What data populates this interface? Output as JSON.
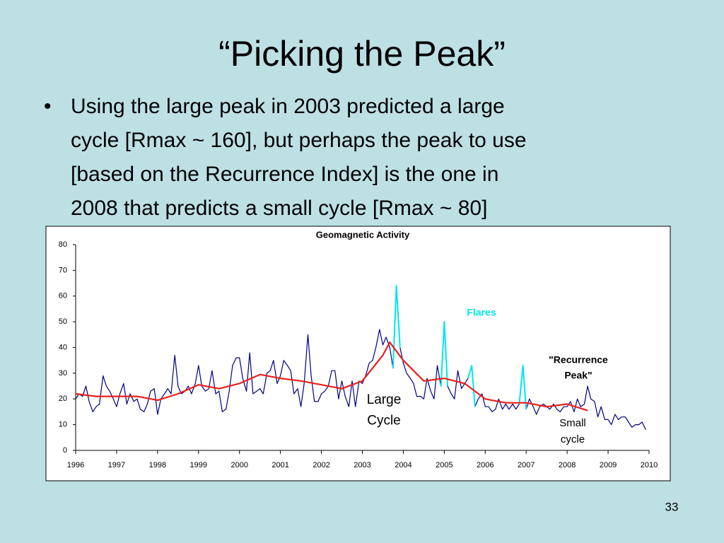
{
  "slide": {
    "title": "“Picking the Peak”",
    "bullet": [
      "Using the large peak in 2003 predicted a large",
      "cycle [Rmax ~ 160], but perhaps the peak to use",
      "[based on the Recurrence Index] is the one in",
      "2008 that predicts a small cycle [Rmax ~ 80]"
    ],
    "page_number": "33"
  },
  "chart_data": {
    "type": "line",
    "title": "Geomagnetic Activity",
    "xlim": [
      1996,
      2010
    ],
    "xticks": [
      1996,
      1997,
      1998,
      1999,
      2000,
      2001,
      2002,
      2003,
      2004,
      2005,
      2006,
      2007,
      2008,
      2009,
      2010
    ],
    "ylim": [
      0,
      80
    ],
    "yticks": [
      0,
      10,
      20,
      30,
      40,
      50,
      60,
      70,
      80
    ],
    "series": [
      {
        "color": "#000080",
        "width": 1.2,
        "x": [
          1996.0,
          1996.08,
          1996.17,
          1996.25,
          1996.33,
          1996.42,
          1996.5,
          1996.58,
          1996.67,
          1996.75,
          1996.83,
          1996.92,
          1997.0,
          1997.08,
          1997.17,
          1997.25,
          1997.33,
          1997.42,
          1997.5,
          1997.58,
          1997.67,
          1997.75,
          1997.83,
          1997.92,
          1998.0,
          1998.08,
          1998.17,
          1998.25,
          1998.33,
          1998.42,
          1998.5,
          1998.58,
          1998.67,
          1998.75,
          1998.83,
          1998.92,
          1999.0,
          1999.08,
          1999.17,
          1999.25,
          1999.33,
          1999.42,
          1999.5,
          1999.58,
          1999.67,
          1999.75,
          1999.83,
          1999.92,
          2000.0,
          2000.08,
          2000.17,
          2000.25,
          2000.33,
          2000.42,
          2000.5,
          2000.58,
          2000.67,
          2000.75,
          2000.83,
          2000.92,
          2001.0,
          2001.08,
          2001.17,
          2001.25,
          2001.33,
          2001.42,
          2001.5,
          2001.58,
          2001.67,
          2001.75,
          2001.83,
          2001.92,
          2002.0,
          2002.08,
          2002.17,
          2002.25,
          2002.33,
          2002.42,
          2002.5,
          2002.58,
          2002.67,
          2002.75,
          2002.83,
          2002.92,
          2003.0,
          2003.08,
          2003.17,
          2003.25,
          2003.33,
          2003.42,
          2003.5,
          2003.58,
          2003.67,
          2003.75,
          2003.83,
          2003.92,
          2004.0,
          2004.08,
          2004.17,
          2004.25,
          2004.33,
          2004.42,
          2004.5,
          2004.58,
          2004.67,
          2004.75,
          2004.83,
          2004.92,
          2005.0,
          2005.08,
          2005.17,
          2005.25,
          2005.33,
          2005.42,
          2005.5,
          2005.58,
          2005.67,
          2005.75,
          2005.83,
          2005.92,
          2006.0,
          2006.08,
          2006.17,
          2006.25,
          2006.33,
          2006.42,
          2006.5,
          2006.58,
          2006.67,
          2006.75,
          2006.83,
          2006.92,
          2007.0,
          2007.08,
          2007.17,
          2007.25,
          2007.33,
          2007.42,
          2007.5,
          2007.58,
          2007.67,
          2007.75,
          2007.83,
          2007.92,
          2008.0,
          2008.08,
          2008.17,
          2008.25,
          2008.33,
          2008.42,
          2008.5,
          2008.58,
          2008.67,
          2008.75,
          2008.83,
          2008.92,
          2009.0,
          2009.08,
          2009.17,
          2009.25,
          2009.33,
          2009.42,
          2009.5,
          2009.58,
          2009.67,
          2009.75,
          2009.83,
          2009.92
        ],
        "values": [
          20,
          22,
          21,
          25,
          19,
          15,
          17,
          18,
          29,
          25,
          23,
          20,
          17,
          22,
          26,
          18,
          22,
          19,
          20,
          16,
          15,
          18,
          23,
          24,
          14,
          20,
          22,
          24,
          22,
          37,
          25,
          22,
          23,
          25,
          22,
          26,
          33,
          25,
          23,
          24,
          31,
          22,
          23,
          15,
          16,
          23,
          33,
          36,
          36,
          28,
          23,
          38,
          22,
          23,
          24,
          22,
          30,
          31,
          35,
          26,
          29,
          35,
          33,
          31,
          22,
          24,
          17,
          26,
          45,
          29,
          19,
          19,
          22,
          23,
          25,
          31,
          31,
          20,
          27,
          21,
          17,
          27,
          17,
          27,
          26,
          29,
          34,
          35,
          40,
          47,
          41,
          44,
          40,
          32,
          64,
          40,
          34,
          30,
          28,
          26,
          21,
          21,
          20,
          28,
          23,
          20,
          33,
          25,
          49,
          25,
          22,
          20,
          31,
          24,
          26,
          28,
          33,
          17,
          20,
          22,
          17,
          17,
          15,
          16,
          20,
          16,
          18,
          16,
          18,
          16,
          18,
          33,
          16,
          20,
          17,
          14,
          17,
          18,
          17,
          16,
          18,
          16,
          15,
          17,
          17,
          19,
          15,
          20,
          17,
          18,
          25,
          20,
          19,
          13,
          17,
          12,
          12,
          10,
          14,
          12,
          13,
          13,
          11,
          9,
          10,
          10,
          11,
          8
        ]
      },
      {
        "color": "#00e5ee",
        "width": 2,
        "x": [
          2003.75,
          2003.83,
          2003.92,
          2004.4,
          2004.92,
          2005.0,
          2005.08,
          2005.3,
          2005.58,
          2005.67,
          2005.75,
          2006.4,
          2006.83,
          2006.92,
          2007.0
        ],
        "values": [
          32,
          64,
          40,
          null,
          25,
          50,
          25,
          null,
          28,
          33,
          17,
          null,
          18,
          33,
          16
        ]
      },
      {
        "color": "#e8201c",
        "width": 2.2,
        "x": [
          1996.0,
          1996.5,
          1997.0,
          1997.5,
          1998.0,
          1998.5,
          1999.0,
          1999.5,
          2000.0,
          2000.5,
          2001.0,
          2001.5,
          2002.0,
          2002.5,
          2003.0,
          2003.5,
          2003.67,
          2004.0,
          2004.5,
          2005.0,
          2005.5,
          2006.0,
          2006.5,
          2007.0,
          2007.5,
          2008.0,
          2008.5
        ],
        "values": [
          22,
          21,
          21,
          21,
          19.5,
          22,
          25.5,
          24,
          26,
          29.5,
          28,
          27,
          25.5,
          24,
          27,
          37,
          42,
          35,
          27,
          28,
          26,
          20,
          18.5,
          18.5,
          17,
          18,
          15.5
        ]
      }
    ],
    "annotations": [
      {
        "lines": [
          "Flares"
        ],
        "color": "#00e5ee",
        "bold": true
      },
      {
        "lines": [
          "\"Recurrence",
          "Peak\""
        ],
        "color": "#000000",
        "bold": true
      },
      {
        "lines": [
          "Large",
          "Cycle"
        ],
        "color": "#000000",
        "bold": false
      },
      {
        "lines": [
          "Small",
          "cycle"
        ],
        "color": "#000000",
        "bold": false
      }
    ]
  }
}
